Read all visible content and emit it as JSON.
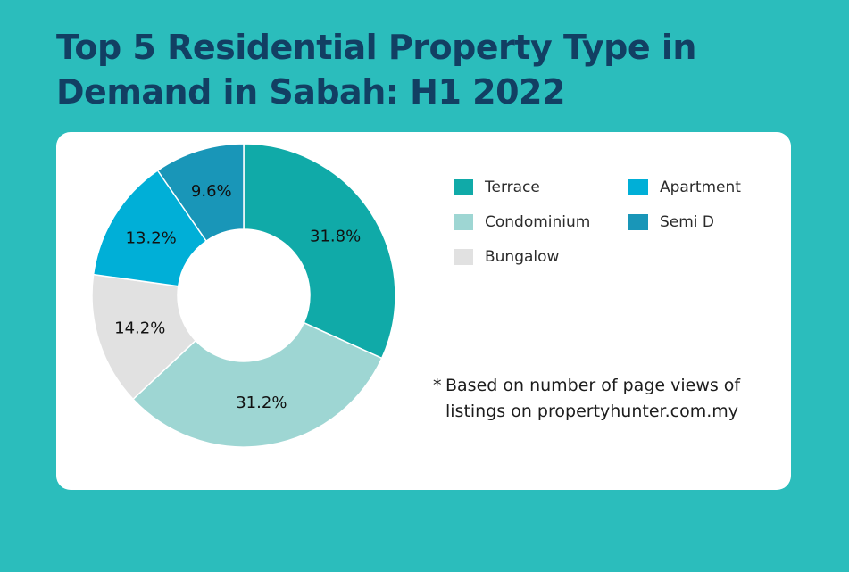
{
  "page": {
    "background": "#2bbdbc"
  },
  "title": "Top 5 Residential Property Type in Demand in Sabah: H1 2022",
  "note": {
    "marker": "*",
    "text": "Based on number of page views of listings on propertyhunter.com.my"
  },
  "chart_data": {
    "type": "pie",
    "style": "donut",
    "title": "Top 5 Residential Property Type in Demand in Sabah: H1 2022",
    "unit": "%",
    "legend_position": "right",
    "slices": [
      {
        "label": "Terrace",
        "value": 31.8,
        "display": "31.8%",
        "color": "#10aaa8"
      },
      {
        "label": "Condominium",
        "value": 31.2,
        "display": "31.2%",
        "color": "#9ed6d3"
      },
      {
        "label": "Bungalow",
        "value": 14.2,
        "display": "14.2%",
        "color": "#e1e1e1"
      },
      {
        "label": "Apartment",
        "value": 13.2,
        "display": "13.2%",
        "color": "#00afd7"
      },
      {
        "label": "Semi D",
        "value": 9.6,
        "display": "9.6%",
        "color": "#1996b8"
      }
    ],
    "legend_order": [
      "Terrace",
      "Apartment",
      "Condominium",
      "Semi D",
      "Bungalow"
    ]
  }
}
